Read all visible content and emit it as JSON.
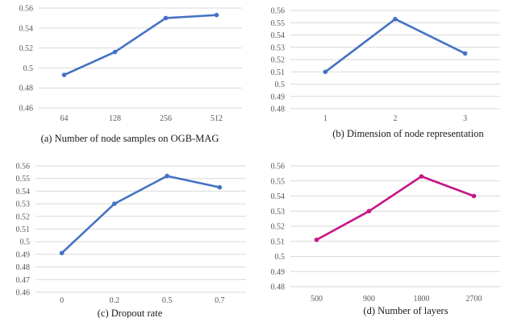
{
  "chart_data": [
    {
      "type": "line",
      "caption": "(a) Number of node samples on OGB-MAG",
      "categories": [
        "64",
        "128",
        "256",
        "512"
      ],
      "series": [
        {
          "values": [
            0.493,
            0.516,
            0.55,
            0.553
          ],
          "color": "#4472c4"
        }
      ],
      "yticks": [
        0.46,
        0.48,
        0.5,
        0.52,
        0.54,
        0.56
      ],
      "ylim": [
        0.46,
        0.56
      ],
      "grid": true
    },
    {
      "type": "line",
      "caption": "(b) Dimension of node representation",
      "categories": [
        "1",
        "2",
        "3"
      ],
      "series": [
        {
          "values": [
            0.51,
            0.553,
            0.525
          ],
          "color": "#4472c4"
        }
      ],
      "yticks": [
        0.48,
        0.49,
        0.5,
        0.51,
        0.52,
        0.53,
        0.54,
        0.55,
        0.56
      ],
      "ylim": [
        0.48,
        0.56
      ],
      "grid": true
    },
    {
      "type": "line",
      "caption": "(c) Dropout rate",
      "categories": [
        "0",
        "0.2",
        "0.5",
        "0.7"
      ],
      "series": [
        {
          "values": [
            0.491,
            0.53,
            0.552,
            0.543
          ],
          "color": "#4472c4"
        }
      ],
      "yticks": [
        0.46,
        0.47,
        0.48,
        0.49,
        0.5,
        0.51,
        0.52,
        0.53,
        0.54,
        0.55,
        0.56
      ],
      "ylim": [
        0.46,
        0.56
      ],
      "grid": true
    },
    {
      "type": "line",
      "caption": "(d) Number of layers",
      "categories": [
        "500",
        "900",
        "1800",
        "2700"
      ],
      "series": [
        {
          "values": [
            0.511,
            0.53,
            0.553,
            0.54
          ],
          "color": "#c71585"
        }
      ],
      "yticks": [
        0.48,
        0.49,
        0.5,
        0.51,
        0.52,
        0.53,
        0.54,
        0.55,
        0.56
      ],
      "ylim": [
        0.48,
        0.56
      ],
      "grid": true
    }
  ]
}
